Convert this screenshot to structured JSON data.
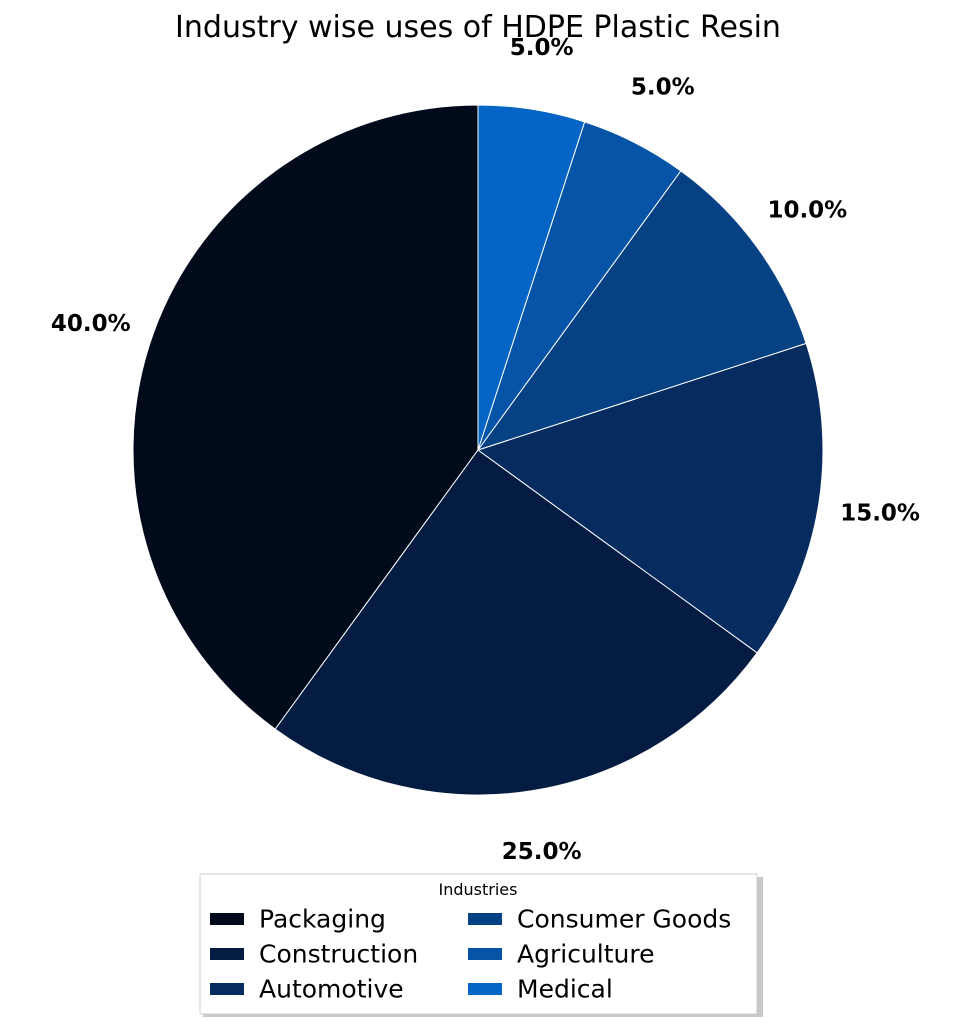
{
  "chart_data": {
    "type": "pie",
    "title": "Industry wise uses of HDPE Plastic Resin",
    "legend_title": "Industries",
    "legend_position": "bottom-center",
    "start_angle_deg": 90,
    "direction": "counterclockwise",
    "slices": [
      {
        "label": "Packaging",
        "value": 40.0,
        "pct_label": "40.0%",
        "color": "#010a1a"
      },
      {
        "label": "Construction",
        "value": 25.0,
        "pct_label": "25.0%",
        "color": "#041c41"
      },
      {
        "label": "Automotive",
        "value": 15.0,
        "pct_label": "15.0%",
        "color": "#062b5e"
      },
      {
        "label": "Consumer Goods",
        "value": 10.0,
        "pct_label": "10.0%",
        "color": "#064283"
      },
      {
        "label": "Agriculture",
        "value": 5.0,
        "pct_label": "5.0%",
        "color": "#0554a8"
      },
      {
        "label": "Medical",
        "value": 5.0,
        "pct_label": "5.0%",
        "color": "#0565c6"
      }
    ]
  }
}
